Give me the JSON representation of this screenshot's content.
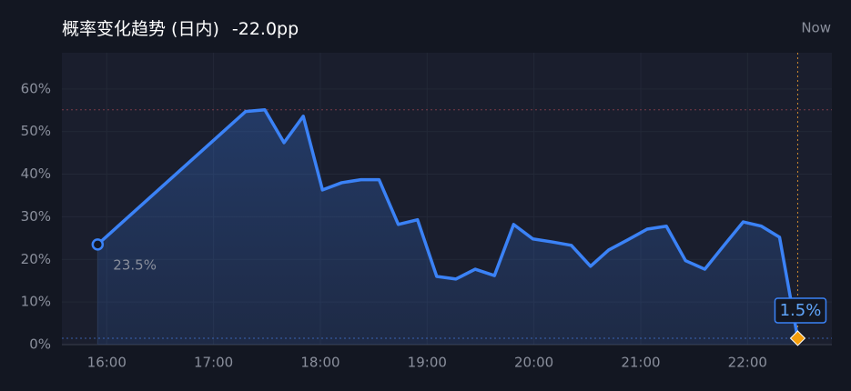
{
  "chart_data": {
    "type": "line",
    "title": "概率变化趋势 (日内)",
    "subtitle": "-22.0pp",
    "annotation": "Now",
    "x": [
      15.915,
      17.3,
      17.48,
      17.66,
      17.84,
      18.02,
      18.2,
      18.38,
      18.55,
      18.73,
      18.91,
      19.09,
      19.27,
      19.45,
      19.63,
      19.81,
      19.99,
      20.17,
      20.35,
      20.53,
      20.7,
      20.88,
      21.06,
      21.24,
      21.42,
      21.6,
      21.78,
      21.96,
      22.13,
      22.3,
      22.47
    ],
    "values": [
      23.5,
      54.7,
      55.1,
      47.4,
      53.6,
      36.3,
      38.0,
      38.7,
      38.7,
      28.2,
      29.3,
      16.0,
      15.4,
      17.7,
      16.2,
      28.2,
      24.8,
      24.1,
      23.3,
      18.4,
      22.2,
      24.6,
      27.1,
      27.8,
      19.7,
      17.7,
      23.3,
      28.8,
      27.8,
      25.2,
      1.5
    ],
    "value_labels": [
      "23.5%",
      null,
      null,
      null,
      null,
      null,
      null,
      null,
      null,
      null,
      null,
      null,
      null,
      null,
      null,
      null,
      null,
      null,
      null,
      null,
      null,
      null,
      null,
      null,
      null,
      null,
      null,
      null,
      null,
      null,
      "1.5%"
    ],
    "color": "#3b82f6",
    "xlim": [
      15.58,
      22.79
    ],
    "xticks": [
      {
        "value": 16,
        "label": "16:00"
      },
      {
        "value": 17,
        "label": "17:00"
      },
      {
        "value": 18,
        "label": "18:00"
      },
      {
        "value": 19,
        "label": "19:00"
      },
      {
        "value": 20,
        "label": "20:00"
      },
      {
        "value": 21,
        "label": "21:00"
      },
      {
        "value": 22,
        "label": "22:00"
      }
    ],
    "ylim": [
      0,
      68.5
    ],
    "yticks": [
      {
        "value": 0,
        "label": "0%"
      },
      {
        "value": 10,
        "label": "10%"
      },
      {
        "value": 20,
        "label": "20%"
      },
      {
        "value": 30,
        "label": "30%"
      },
      {
        "value": 40,
        "label": "40%"
      },
      {
        "value": 50,
        "label": "50%"
      },
      {
        "value": 60,
        "label": "60%"
      }
    ],
    "grid": true
  }
}
